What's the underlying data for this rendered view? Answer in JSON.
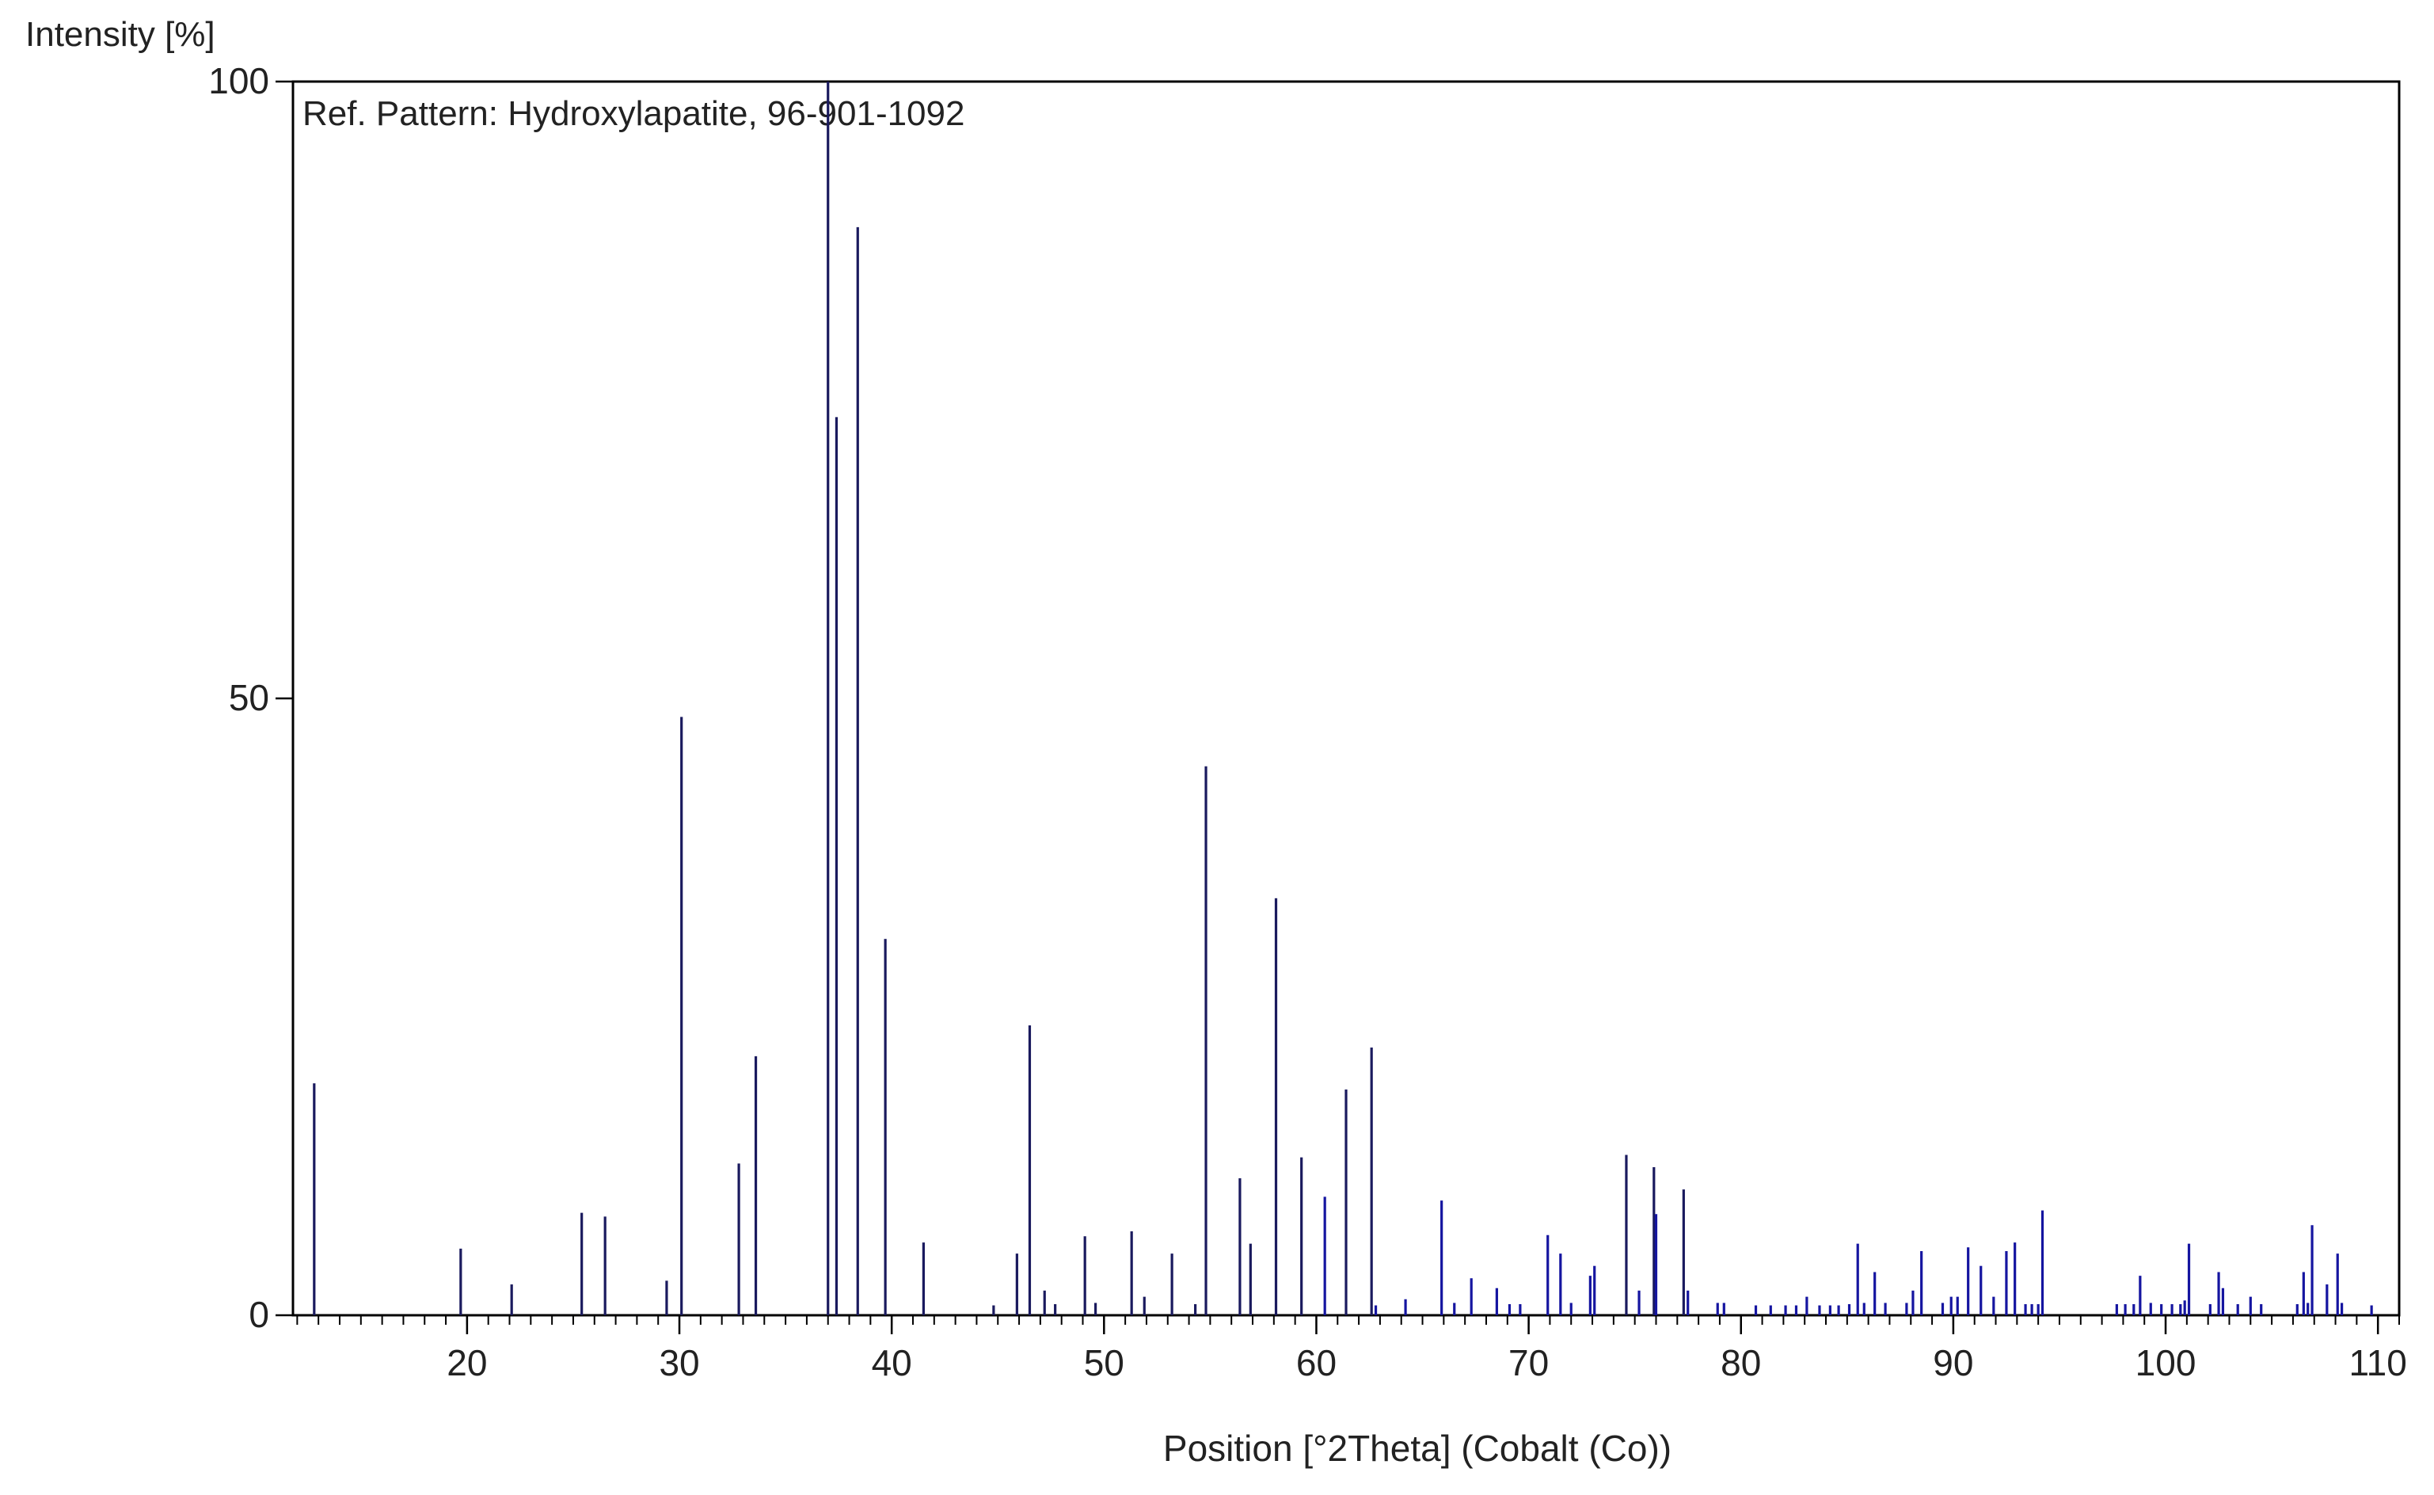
{
  "chart_data": {
    "type": "bar",
    "title": "",
    "annotation": "Ref. Pattern: Hydroxylapatite, 96-901-1092",
    "ylabel": "Intensity [%]",
    "xlabel": "Position [°2Theta] (Cobalt (Co))",
    "xlim": [
      11.8,
      111.0
    ],
    "ylim": [
      0,
      100
    ],
    "xticks": [
      20,
      30,
      40,
      50,
      60,
      70,
      80,
      90,
      100,
      110
    ],
    "xtick_labels": [
      "20",
      "30",
      "40",
      "50",
      "60",
      "70",
      "80",
      "90",
      "100",
      "110"
    ],
    "yticks": [
      0,
      50,
      100
    ],
    "ytick_labels": [
      "0",
      "50",
      "100"
    ],
    "minor_xtick_step": 1,
    "grid": false,
    "bar_color": "#1a1a5e",
    "bar_color_dense": "#1515a0",
    "peaks": [
      {
        "x": 12.8,
        "y": 18.8
      },
      {
        "x": 19.7,
        "y": 5.4
      },
      {
        "x": 22.1,
        "y": 2.5
      },
      {
        "x": 25.4,
        "y": 8.3
      },
      {
        "x": 26.5,
        "y": 8.0
      },
      {
        "x": 29.4,
        "y": 2.8
      },
      {
        "x": 30.1,
        "y": 48.5
      },
      {
        "x": 32.8,
        "y": 12.3
      },
      {
        "x": 33.6,
        "y": 21.0
      },
      {
        "x": 37.0,
        "y": 100.0
      },
      {
        "x": 37.4,
        "y": 72.8
      },
      {
        "x": 38.4,
        "y": 88.2
      },
      {
        "x": 39.7,
        "y": 30.5
      },
      {
        "x": 41.5,
        "y": 5.9
      },
      {
        "x": 44.8,
        "y": 0.8
      },
      {
        "x": 45.9,
        "y": 5.0
      },
      {
        "x": 46.5,
        "y": 23.5
      },
      {
        "x": 47.2,
        "y": 2.0
      },
      {
        "x": 47.7,
        "y": 0.9
      },
      {
        "x": 49.1,
        "y": 6.4
      },
      {
        "x": 49.6,
        "y": 1.0
      },
      {
        "x": 51.3,
        "y": 6.8
      },
      {
        "x": 51.9,
        "y": 1.5
      },
      {
        "x": 53.2,
        "y": 5.0
      },
      {
        "x": 54.3,
        "y": 0.9
      },
      {
        "x": 54.8,
        "y": 44.5
      },
      {
        "x": 56.4,
        "y": 11.1
      },
      {
        "x": 56.9,
        "y": 5.8
      },
      {
        "x": 58.1,
        "y": 33.8
      },
      {
        "x": 59.3,
        "y": 12.8
      },
      {
        "x": 60.4,
        "y": 9.6
      },
      {
        "x": 61.4,
        "y": 18.3
      },
      {
        "x": 62.6,
        "y": 21.7
      },
      {
        "x": 62.8,
        "y": 0.8
      },
      {
        "x": 64.2,
        "y": 1.3
      },
      {
        "x": 65.9,
        "y": 9.3
      },
      {
        "x": 66.5,
        "y": 1.0
      },
      {
        "x": 67.3,
        "y": 3.0
      },
      {
        "x": 68.5,
        "y": 2.2
      },
      {
        "x": 69.1,
        "y": 0.9
      },
      {
        "x": 69.6,
        "y": 0.9
      },
      {
        "x": 70.9,
        "y": 6.5
      },
      {
        "x": 71.5,
        "y": 5.0
      },
      {
        "x": 72.0,
        "y": 1.0
      },
      {
        "x": 72.9,
        "y": 3.2
      },
      {
        "x": 73.1,
        "y": 4.0
      },
      {
        "x": 74.6,
        "y": 13.0
      },
      {
        "x": 75.2,
        "y": 2.0
      },
      {
        "x": 75.9,
        "y": 12.0
      },
      {
        "x": 76.0,
        "y": 8.2
      },
      {
        "x": 77.3,
        "y": 10.2
      },
      {
        "x": 77.5,
        "y": 2.0
      },
      {
        "x": 78.9,
        "y": 1.0
      },
      {
        "x": 79.2,
        "y": 1.0
      },
      {
        "x": 80.7,
        "y": 0.8
      },
      {
        "x": 81.4,
        "y": 0.8
      },
      {
        "x": 82.1,
        "y": 0.8
      },
      {
        "x": 82.6,
        "y": 0.8
      },
      {
        "x": 83.1,
        "y": 1.5
      },
      {
        "x": 83.7,
        "y": 0.8
      },
      {
        "x": 84.2,
        "y": 0.8
      },
      {
        "x": 84.6,
        "y": 0.8
      },
      {
        "x": 85.1,
        "y": 0.9
      },
      {
        "x": 85.5,
        "y": 5.8
      },
      {
        "x": 85.8,
        "y": 1.0
      },
      {
        "x": 86.3,
        "y": 3.5
      },
      {
        "x": 86.8,
        "y": 1.0
      },
      {
        "x": 87.8,
        "y": 1.0
      },
      {
        "x": 88.1,
        "y": 2.0
      },
      {
        "x": 88.5,
        "y": 5.2
      },
      {
        "x": 89.5,
        "y": 1.0
      },
      {
        "x": 89.9,
        "y": 1.5
      },
      {
        "x": 90.2,
        "y": 1.5
      },
      {
        "x": 90.7,
        "y": 5.5
      },
      {
        "x": 91.3,
        "y": 4.0
      },
      {
        "x": 91.9,
        "y": 1.5
      },
      {
        "x": 92.5,
        "y": 5.2
      },
      {
        "x": 92.9,
        "y": 5.9
      },
      {
        "x": 93.4,
        "y": 0.9
      },
      {
        "x": 93.7,
        "y": 0.9
      },
      {
        "x": 94.0,
        "y": 0.9
      },
      {
        "x": 94.2,
        "y": 8.5
      },
      {
        "x": 97.7,
        "y": 0.9
      },
      {
        "x": 98.1,
        "y": 0.9
      },
      {
        "x": 98.5,
        "y": 0.9
      },
      {
        "x": 98.8,
        "y": 3.2
      },
      {
        "x": 99.3,
        "y": 1.0
      },
      {
        "x": 99.8,
        "y": 0.9
      },
      {
        "x": 100.3,
        "y": 0.9
      },
      {
        "x": 100.7,
        "y": 0.9
      },
      {
        "x": 100.9,
        "y": 1.2
      },
      {
        "x": 101.1,
        "y": 5.8
      },
      {
        "x": 102.1,
        "y": 0.9
      },
      {
        "x": 102.5,
        "y": 3.5
      },
      {
        "x": 102.7,
        "y": 2.2
      },
      {
        "x": 103.4,
        "y": 0.9
      },
      {
        "x": 104.0,
        "y": 1.5
      },
      {
        "x": 104.5,
        "y": 0.9
      },
      {
        "x": 106.2,
        "y": 0.9
      },
      {
        "x": 106.5,
        "y": 3.5
      },
      {
        "x": 106.7,
        "y": 1.0
      },
      {
        "x": 106.9,
        "y": 7.3
      },
      {
        "x": 107.6,
        "y": 2.5
      },
      {
        "x": 108.1,
        "y": 5.0
      },
      {
        "x": 108.3,
        "y": 1.0
      },
      {
        "x": 109.7,
        "y": 0.8
      }
    ]
  }
}
